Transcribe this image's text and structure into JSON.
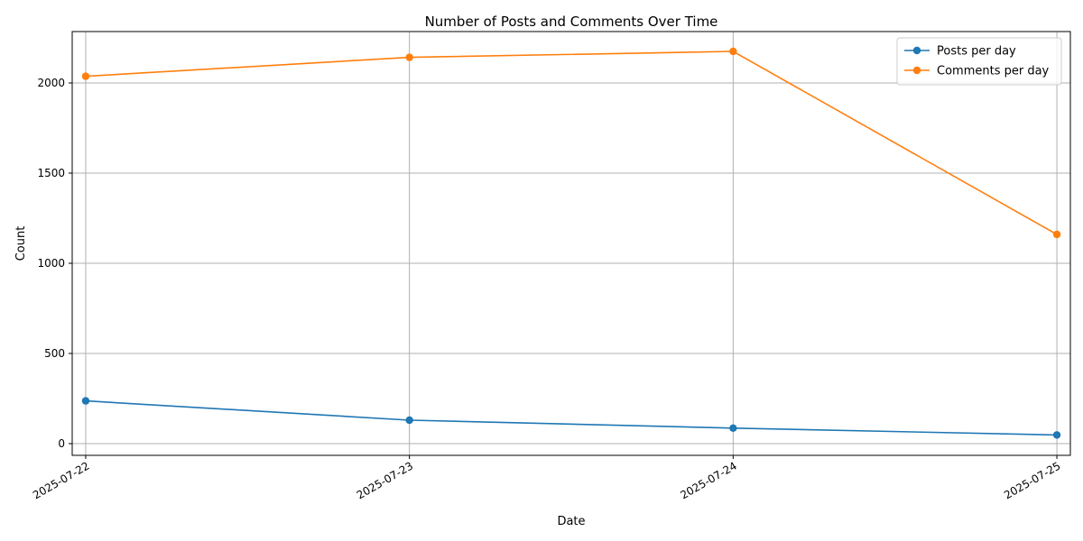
{
  "chart_data": {
    "type": "line",
    "title": "Number of Posts and Comments Over Time",
    "xlabel": "Date",
    "ylabel": "Count",
    "x": [
      "2025-07-22",
      "2025-07-23",
      "2025-07-24",
      "2025-07-25"
    ],
    "xlim": [
      "2025-07-21 23:00",
      "2025-07-25 01:00"
    ],
    "ylim": [
      -65,
      2285
    ],
    "yticks": [
      0,
      500,
      1000,
      1500,
      2000
    ],
    "grid": true,
    "legend_position": "top-right",
    "series": [
      {
        "name": "Posts per day",
        "color": "#1f77b4",
        "marker": "circle",
        "values": [
          237,
          130,
          86,
          48
        ]
      },
      {
        "name": "Comments per day",
        "color": "#ff7f0e",
        "marker": "circle",
        "values": [
          2037,
          2142,
          2175,
          1160
        ]
      }
    ]
  }
}
